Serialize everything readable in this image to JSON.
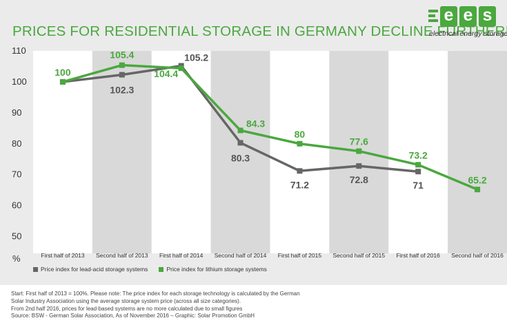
{
  "header": {
    "title": "PRICES FOR RESIDENTIAL STORAGE IN GERMANY DECLINE FURTHER!",
    "logo_letters": [
      "e",
      "e",
      "s"
    ],
    "logo_subtitle": "electrical energy storage"
  },
  "chart_data": {
    "type": "line",
    "categories": [
      "First half of 2013",
      "Second half of 2013",
      "First half of 2014",
      "Second half of 2014",
      "First half of 2015",
      "Second half of 2015",
      "First half of 2016",
      "Second half of 2016"
    ],
    "ylabel": "%",
    "ylim": [
      45,
      110
    ],
    "yticks": [
      50,
      60,
      70,
      80,
      90,
      100,
      110
    ],
    "grid": "alternating column bands",
    "legend_position": "bottom-left",
    "series": [
      {
        "name": "Price index for lead-acid storage systems",
        "color": "#666666",
        "marker": "square",
        "values": [
          100,
          102.3,
          105.2,
          80.3,
          71.2,
          72.8,
          71,
          null
        ],
        "labels": [
          "",
          "102.3",
          "105.2",
          "80.3",
          "71.2",
          "72.8",
          "71",
          ""
        ]
      },
      {
        "name": "Price index for lithium storage systems",
        "color": "#4aa83e",
        "marker": "square",
        "values": [
          100,
          105.4,
          104.4,
          84.3,
          80,
          77.6,
          73.2,
          65.2
        ],
        "labels": [
          "100",
          "105.4",
          "104.4",
          "84.3",
          "80",
          "77.6",
          "73.2",
          "65.2"
        ]
      }
    ]
  },
  "footnote": [
    "Start: First half of 2013 = 100%. Please note: The price index for each storage technology is calculated by the German",
    "Solar Industry Association using the average storage system price (across all size categories).",
    "From 2nd half 2016, prices for lead-based systems are no more calculated due to small figures",
    "Source: BSW - German Solar Association, As of November 2016 – Graphic: Solar Promotion GmbH"
  ]
}
